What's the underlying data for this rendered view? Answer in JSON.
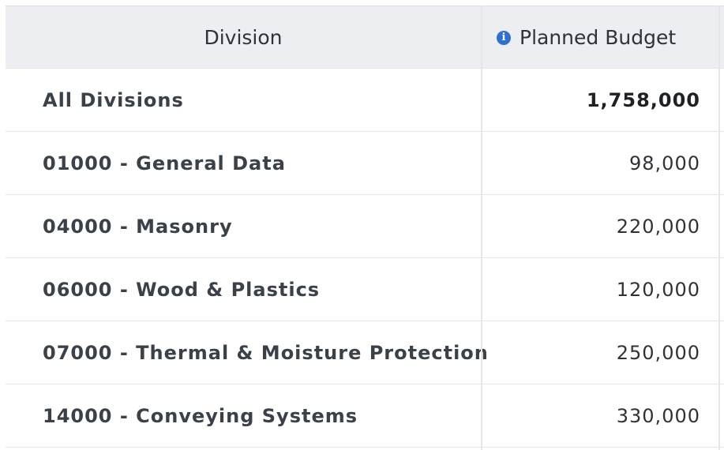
{
  "table": {
    "headers": {
      "division": "Division",
      "planned_budget": "Planned Budget",
      "info_icon": "info-icon"
    },
    "rows": [
      {
        "division": "All Divisions",
        "budget": "1,758,000",
        "is_total": true
      },
      {
        "division": "01000 - General Data",
        "budget": "98,000",
        "is_total": false
      },
      {
        "division": "04000 - Masonry",
        "budget": "220,000",
        "is_total": false
      },
      {
        "division": "06000 - Wood & Plastics",
        "budget": "120,000",
        "is_total": false
      },
      {
        "division": "07000 - Thermal & Moisture Protection",
        "budget": "250,000",
        "is_total": false
      },
      {
        "division": "14000 - Conveying Systems",
        "budget": "330,000",
        "is_total": false
      }
    ]
  },
  "colors": {
    "header_background": "#eceef2",
    "info_icon": "#2e6fd1",
    "grid_line": "#e4e6ea",
    "text": "#3b4148"
  }
}
